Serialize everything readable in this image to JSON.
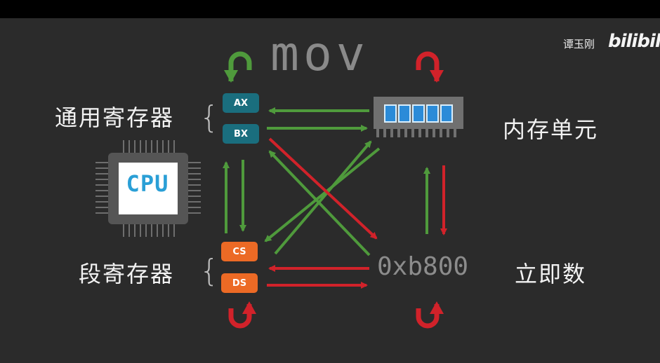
{
  "instruction": "mov",
  "immediate": {
    "value": "0xb800",
    "label": "立即数"
  },
  "memory": {
    "label": "内存单元"
  },
  "general_registers": {
    "label": "通用寄存器",
    "items": [
      "AX",
      "BX"
    ]
  },
  "segment_registers": {
    "label": "段寄存器",
    "items": [
      "CS",
      "DS"
    ]
  },
  "cpu": {
    "label": "CPU"
  },
  "watermark": {
    "author": "谭玉刚",
    "logo": "bilibili"
  },
  "colors": {
    "allowed": "#4f9a3c",
    "forbidden": "#d1222a",
    "general_reg": "#1a6e7e",
    "segment_reg": "#ec6a25"
  },
  "icons": [
    "cpu-chip-icon",
    "memory-module-icon",
    "self-loop-arrow-icon"
  ]
}
